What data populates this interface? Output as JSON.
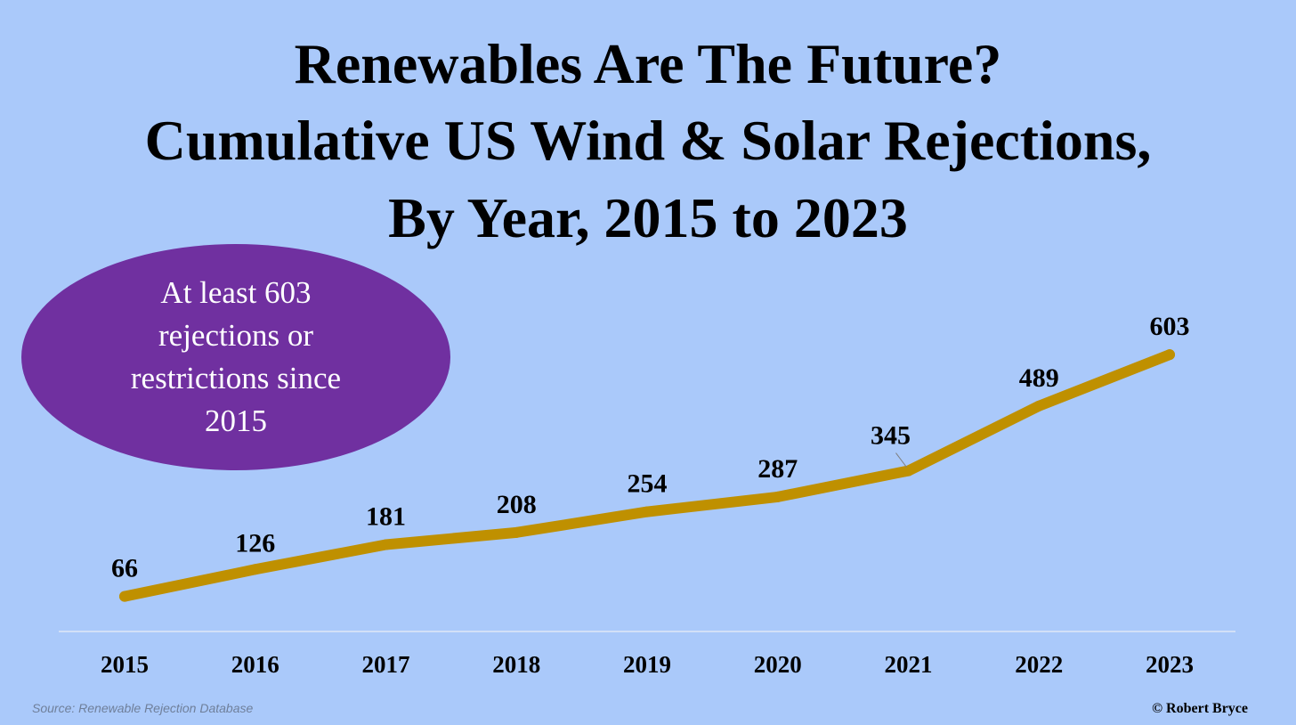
{
  "title_lines": [
    "Renewables Are The Future?",
    "Cumulative US Wind & Solar Rejections,",
    "By Year, 2015 to 2023"
  ],
  "callout": {
    "text": "At least 603 rejections or restrictions since 2015"
  },
  "source": "Source: Renewable Rejection Database",
  "credit": "© Robert Bryce",
  "colors": {
    "background": "#aac9fa",
    "line": "#bf9000",
    "callout": "#7030a0",
    "axis": "#dfe8f6"
  },
  "chart_data": {
    "type": "line",
    "title": "Renewables Are The Future? Cumulative US Wind & Solar Rejections, By Year, 2015 to 2023",
    "categories": [
      "2015",
      "2016",
      "2017",
      "2018",
      "2019",
      "2020",
      "2021",
      "2022",
      "2023"
    ],
    "values": [
      66,
      126,
      181,
      208,
      254,
      287,
      345,
      489,
      603
    ],
    "data_labels": [
      "66",
      "126",
      "181",
      "208",
      "254",
      "287",
      "345",
      "489",
      "603"
    ],
    "xlabel": "",
    "ylabel": "",
    "ylim": [
      0,
      700
    ],
    "grid": false,
    "legend": "none"
  }
}
